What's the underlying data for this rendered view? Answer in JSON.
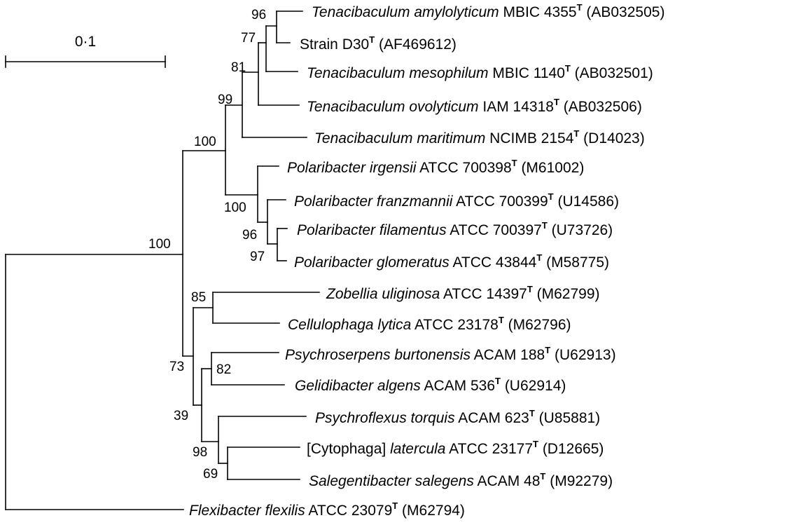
{
  "scale_bar": {
    "label": "0·1"
  },
  "taxa": {
    "t1": {
      "name": "Tenacibaculum amylolyticum",
      "strain": "MBIC 4355",
      "sup": "T",
      "acc": "(AB032505)"
    },
    "t2": {
      "name": "",
      "strain": "Strain D30",
      "sup": "T",
      "acc": "(AF469612)"
    },
    "t3": {
      "name": "Tenacibaculum mesophilum",
      "strain": "MBIC 1140",
      "sup": "T",
      "acc": "(AB032501)"
    },
    "t4": {
      "name": "Tenacibaculum ovolyticum",
      "strain": "IAM 14318",
      "sup": "T",
      "acc": "(AB032506)"
    },
    "t5": {
      "name": "Tenacibaculum maritimum",
      "strain": "NCIMB 2154",
      "sup": "T",
      "acc": "(D14023)"
    },
    "t6": {
      "name": "Polaribacter irgensii",
      "strain": "ATCC 700398",
      "sup": "T",
      "acc": "(M61002)"
    },
    "t7": {
      "name": "Polaribacter franzmannii",
      "strain": "ATCC 700399",
      "sup": "T",
      "acc": "(U14586)"
    },
    "t8": {
      "name": "Polaribacter filamentus",
      "strain": "ATCC 700397",
      "sup": "T",
      "acc": "(U73726)"
    },
    "t9": {
      "name": "Polaribacter glomeratus",
      "strain": "ATCC 43844",
      "sup": "T",
      "acc": "(M58775)"
    },
    "t10": {
      "name": "Zobellia uliginosa",
      "strain": "ATCC 14397",
      "sup": "T",
      "acc": "(M62799)"
    },
    "t11": {
      "name": "Cellulophaga lytica",
      "strain": "ATCC 23178",
      "sup": "T",
      "acc": "(M62796)"
    },
    "t12": {
      "name": "Psychroserpens burtonensis",
      "strain": "ACAM 188",
      "sup": "T",
      "acc": "(U62913)"
    },
    "t13": {
      "name": "Gelidibacter algens",
      "strain": "ACAM 536",
      "sup": "T",
      "acc": "(U62914)"
    },
    "t14": {
      "name": "Psychroflexus torquis",
      "strain": "ACAM 623",
      "sup": "T",
      "acc": "(U85881)"
    },
    "t15": {
      "name": "latercula",
      "prefix": "[Cytophaga]",
      "strain": "ATCC 23177",
      "sup": "T",
      "acc": "(D12665)"
    },
    "t16": {
      "name": "Salegentibacter salegens",
      "strain": "ACAM 48",
      "sup": "T",
      "acc": "(M92279)"
    },
    "t17": {
      "name": "Flexibacter flexilis",
      "strain": "ATCC 23079",
      "sup": "T",
      "acc": "(M62794)"
    }
  },
  "bootstrap": {
    "amy_d30": "96",
    "amy_d30_meso": "77",
    "with_ovo": "81",
    "tenacibaculum": "99",
    "tenac_polar": "100",
    "polaribacter": "100",
    "franz_fil_glom": "96",
    "fil_glom": "97",
    "root_ingroup": "100",
    "zob_cell": "85",
    "lower_clade": "73",
    "psychro_gelidi": "82",
    "psychro_group": "39",
    "torquis_group": "98",
    "lat_sal": "69"
  }
}
